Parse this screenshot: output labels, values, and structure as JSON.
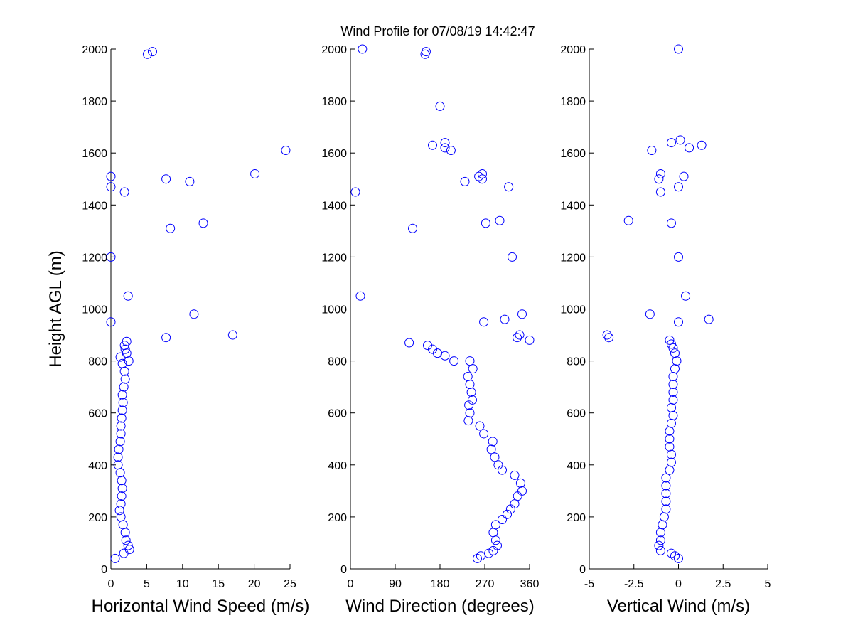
{
  "title": "Wind Profile for  07/08/19 14:42:47",
  "chart_data": [
    {
      "type": "scatter",
      "xlabel": "Horizontal Wind Speed (m/s)",
      "ylabel": "Height AGL (m)",
      "xlim": [
        0,
        25
      ],
      "ylim": [
        0,
        2000
      ],
      "xticks": [
        "0",
        "5",
        "10",
        "15",
        "20",
        "25"
      ],
      "yticks": [
        "0",
        "200",
        "400",
        "600",
        "800",
        "1000",
        "1200",
        "1400",
        "1600",
        "1800",
        "2000"
      ],
      "grid": false,
      "color": "#0000ff",
      "points": [
        [
          1.8,
          60
        ],
        [
          2.6,
          75
        ],
        [
          2.4,
          90
        ],
        [
          2.1,
          110
        ],
        [
          2.0,
          140
        ],
        [
          1.7,
          170
        ],
        [
          1.4,
          200
        ],
        [
          1.2,
          225
        ],
        [
          1.4,
          250
        ],
        [
          1.5,
          280
        ],
        [
          1.6,
          310
        ],
        [
          1.5,
          340
        ],
        [
          1.3,
          370
        ],
        [
          1.0,
          400
        ],
        [
          1.0,
          430
        ],
        [
          1.1,
          460
        ],
        [
          1.3,
          490
        ],
        [
          1.4,
          520
        ],
        [
          1.4,
          550
        ],
        [
          1.5,
          580
        ],
        [
          1.6,
          610
        ],
        [
          1.7,
          640
        ],
        [
          1.6,
          670
        ],
        [
          1.8,
          700
        ],
        [
          2.0,
          730
        ],
        [
          1.9,
          760
        ],
        [
          1.6,
          790
        ],
        [
          2.5,
          800
        ],
        [
          1.3,
          815
        ],
        [
          2.2,
          830
        ],
        [
          2.0,
          845
        ],
        [
          1.9,
          860
        ],
        [
          2.2,
          875
        ],
        [
          0.0,
          950
        ],
        [
          2.4,
          1050
        ],
        [
          0.0,
          1200
        ],
        [
          0.0,
          1470
        ],
        [
          0.0,
          1510
        ],
        [
          1.9,
          1450
        ],
        [
          7.7,
          890
        ],
        [
          11.6,
          980
        ],
        [
          17.0,
          900
        ],
        [
          8.3,
          1310
        ],
        [
          12.9,
          1330
        ],
        [
          7.7,
          1500
        ],
        [
          11.0,
          1490
        ],
        [
          20.1,
          1520
        ],
        [
          24.4,
          1610
        ],
        [
          5.1,
          1980
        ],
        [
          5.8,
          1990
        ],
        [
          0.6,
          40
        ]
      ]
    },
    {
      "type": "scatter",
      "xlabel": "Wind Direction (degrees)",
      "ylabel": "",
      "xlim": [
        0,
        360
      ],
      "ylim": [
        0,
        2000
      ],
      "xticks": [
        "0",
        "90",
        "180",
        "270",
        "360"
      ],
      "yticks": [
        "0",
        "200",
        "400",
        "600",
        "800",
        "1000",
        "1200",
        "1400",
        "1600",
        "1800",
        "2000"
      ],
      "grid": false,
      "color": "#0000ff",
      "points": [
        [
          255,
          40
        ],
        [
          262,
          50
        ],
        [
          278,
          60
        ],
        [
          287,
          70
        ],
        [
          295,
          90
        ],
        [
          292,
          110
        ],
        [
          287,
          140
        ],
        [
          292,
          170
        ],
        [
          305,
          190
        ],
        [
          315,
          210
        ],
        [
          322,
          230
        ],
        [
          330,
          250
        ],
        [
          336,
          280
        ],
        [
          345,
          300
        ],
        [
          342,
          330
        ],
        [
          330,
          360
        ],
        [
          305,
          380
        ],
        [
          297,
          400
        ],
        [
          290,
          430
        ],
        [
          283,
          460
        ],
        [
          286,
          490
        ],
        [
          268,
          520
        ],
        [
          260,
          550
        ],
        [
          237,
          570
        ],
        [
          240,
          600
        ],
        [
          238,
          630
        ],
        [
          245,
          650
        ],
        [
          243,
          680
        ],
        [
          240,
          710
        ],
        [
          236,
          740
        ],
        [
          246,
          770
        ],
        [
          240,
          800
        ],
        [
          208,
          800
        ],
        [
          190,
          820
        ],
        [
          175,
          830
        ],
        [
          165,
          845
        ],
        [
          155,
          860
        ],
        [
          118,
          870
        ],
        [
          10,
          1450
        ],
        [
          20,
          1050
        ],
        [
          125,
          1310
        ],
        [
          165,
          1630
        ],
        [
          180,
          1780
        ],
        [
          190,
          1640
        ],
        [
          190,
          1620
        ],
        [
          202,
          1610
        ],
        [
          230,
          1490
        ],
        [
          258,
          1510
        ],
        [
          265,
          1520
        ],
        [
          265,
          1500
        ],
        [
          268,
          950
        ],
        [
          272,
          1330
        ],
        [
          300,
          1340
        ],
        [
          310,
          960
        ],
        [
          318,
          1470
        ],
        [
          325,
          1200
        ],
        [
          335,
          890
        ],
        [
          345,
          980
        ],
        [
          340,
          900
        ],
        [
          360,
          880
        ],
        [
          150,
          1980
        ],
        [
          152,
          1990
        ],
        [
          24,
          2000
        ]
      ]
    },
    {
      "type": "scatter",
      "xlabel": "Vertical Wind (m/s)",
      "ylabel": "",
      "xlim": [
        -5,
        5
      ],
      "ylim": [
        0,
        2000
      ],
      "xticks": [
        "-5",
        "-2.5",
        "0",
        "2.5",
        "5"
      ],
      "yticks": [
        "0",
        "200",
        "400",
        "600",
        "800",
        "1000",
        "1200",
        "1400",
        "1600",
        "1800",
        "2000"
      ],
      "grid": false,
      "color": "#0000ff",
      "points": [
        [
          0.0,
          40
        ],
        [
          -0.2,
          50
        ],
        [
          -0.4,
          60
        ],
        [
          -1.0,
          70
        ],
        [
          -1.1,
          90
        ],
        [
          -1.0,
          110
        ],
        [
          -1.0,
          140
        ],
        [
          -0.9,
          170
        ],
        [
          -0.8,
          200
        ],
        [
          -0.7,
          230
        ],
        [
          -0.7,
          260
        ],
        [
          -0.7,
          290
        ],
        [
          -0.7,
          320
        ],
        [
          -0.7,
          350
        ],
        [
          -0.5,
          380
        ],
        [
          -0.4,
          410
        ],
        [
          -0.4,
          440
        ],
        [
          -0.5,
          470
        ],
        [
          -0.5,
          500
        ],
        [
          -0.5,
          530
        ],
        [
          -0.4,
          560
        ],
        [
          -0.3,
          590
        ],
        [
          -0.4,
          620
        ],
        [
          -0.3,
          650
        ],
        [
          -0.3,
          680
        ],
        [
          -0.3,
          710
        ],
        [
          -0.3,
          740
        ],
        [
          -0.2,
          770
        ],
        [
          -0.1,
          800
        ],
        [
          -0.2,
          830
        ],
        [
          -0.3,
          850
        ],
        [
          -0.4,
          865
        ],
        [
          -0.5,
          880
        ],
        [
          -4.0,
          900
        ],
        [
          -3.9,
          890
        ],
        [
          -1.6,
          980
        ],
        [
          0.0,
          950
        ],
        [
          0.4,
          1050
        ],
        [
          1.7,
          960
        ],
        [
          0.0,
          1200
        ],
        [
          -2.8,
          1340
        ],
        [
          -0.4,
          1330
        ],
        [
          -1.0,
          1450
        ],
        [
          -1.1,
          1500
        ],
        [
          -1.0,
          1520
        ],
        [
          0.0,
          1470
        ],
        [
          0.3,
          1510
        ],
        [
          -1.5,
          1610
        ],
        [
          -0.4,
          1640
        ],
        [
          0.1,
          1650
        ],
        [
          0.6,
          1620
        ],
        [
          1.3,
          1630
        ],
        [
          0.0,
          2000
        ]
      ]
    }
  ]
}
